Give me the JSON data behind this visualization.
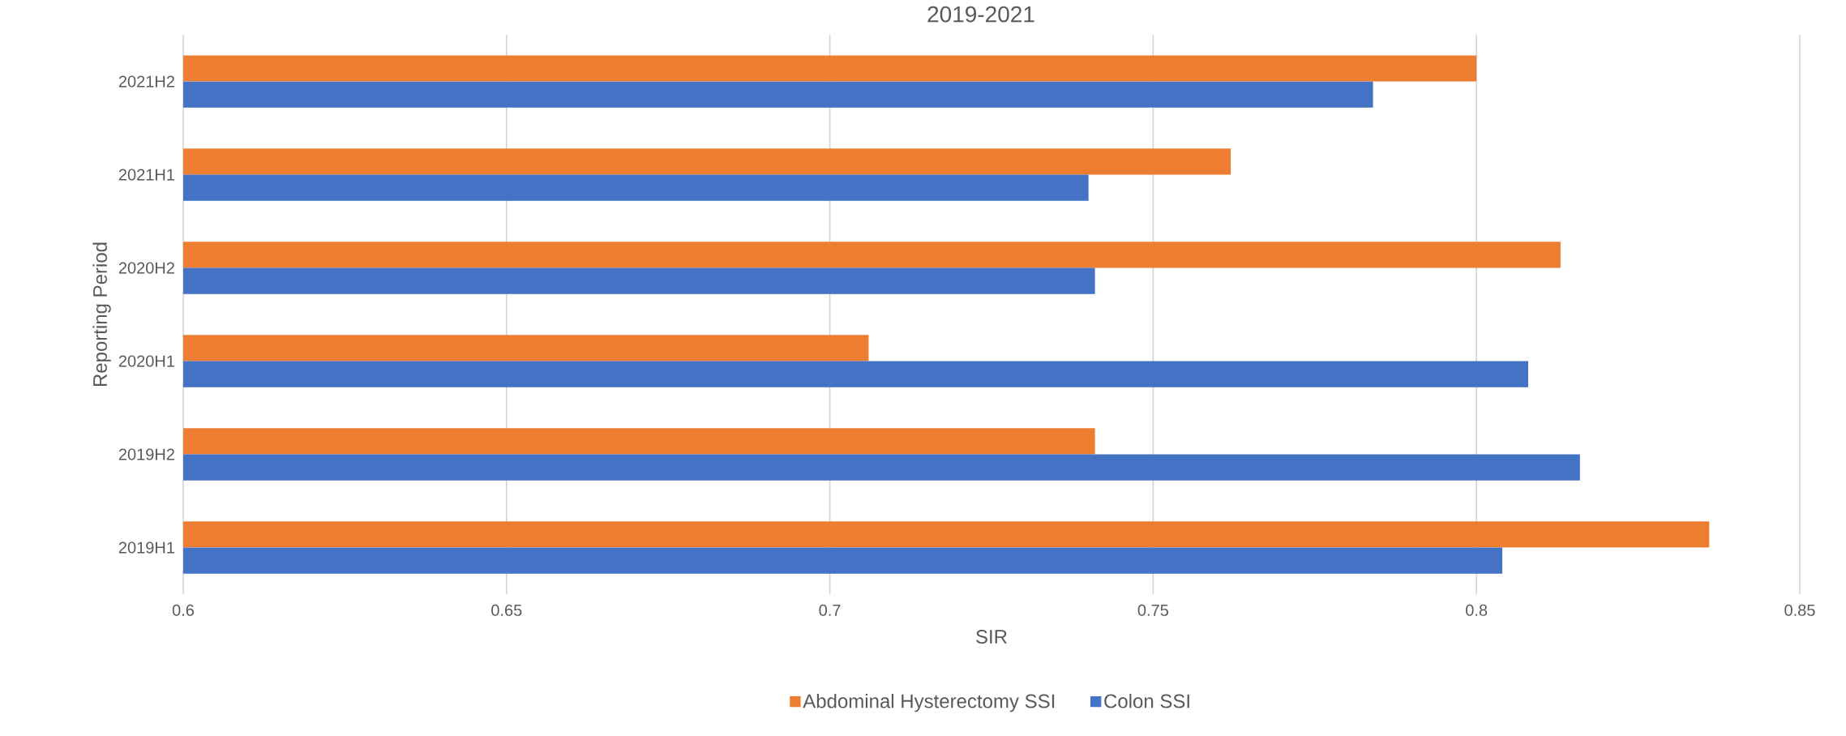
{
  "chart_data": {
    "type": "bar",
    "orientation": "horizontal",
    "title": "2019-2021",
    "xlabel": "SIR",
    "ylabel": "Reporting Period",
    "categories": [
      "2021H2",
      "2021H1",
      "2020H2",
      "2020H1",
      "2019H2",
      "2019H1"
    ],
    "series": [
      {
        "name": "Abdominal Hysterectomy SSI",
        "color": "#ed7d31",
        "values": [
          0.8,
          0.762,
          0.813,
          0.706,
          0.741,
          0.836
        ]
      },
      {
        "name": "Colon SSI",
        "color": "#4472c4",
        "values": [
          0.784,
          0.74,
          0.741,
          0.808,
          0.816,
          0.804
        ]
      }
    ],
    "xlim": [
      0.6,
      0.85
    ],
    "xticks": [
      0.6,
      0.65,
      0.7,
      0.75,
      0.8,
      0.85
    ],
    "grid": "x",
    "legend": "bottom"
  }
}
